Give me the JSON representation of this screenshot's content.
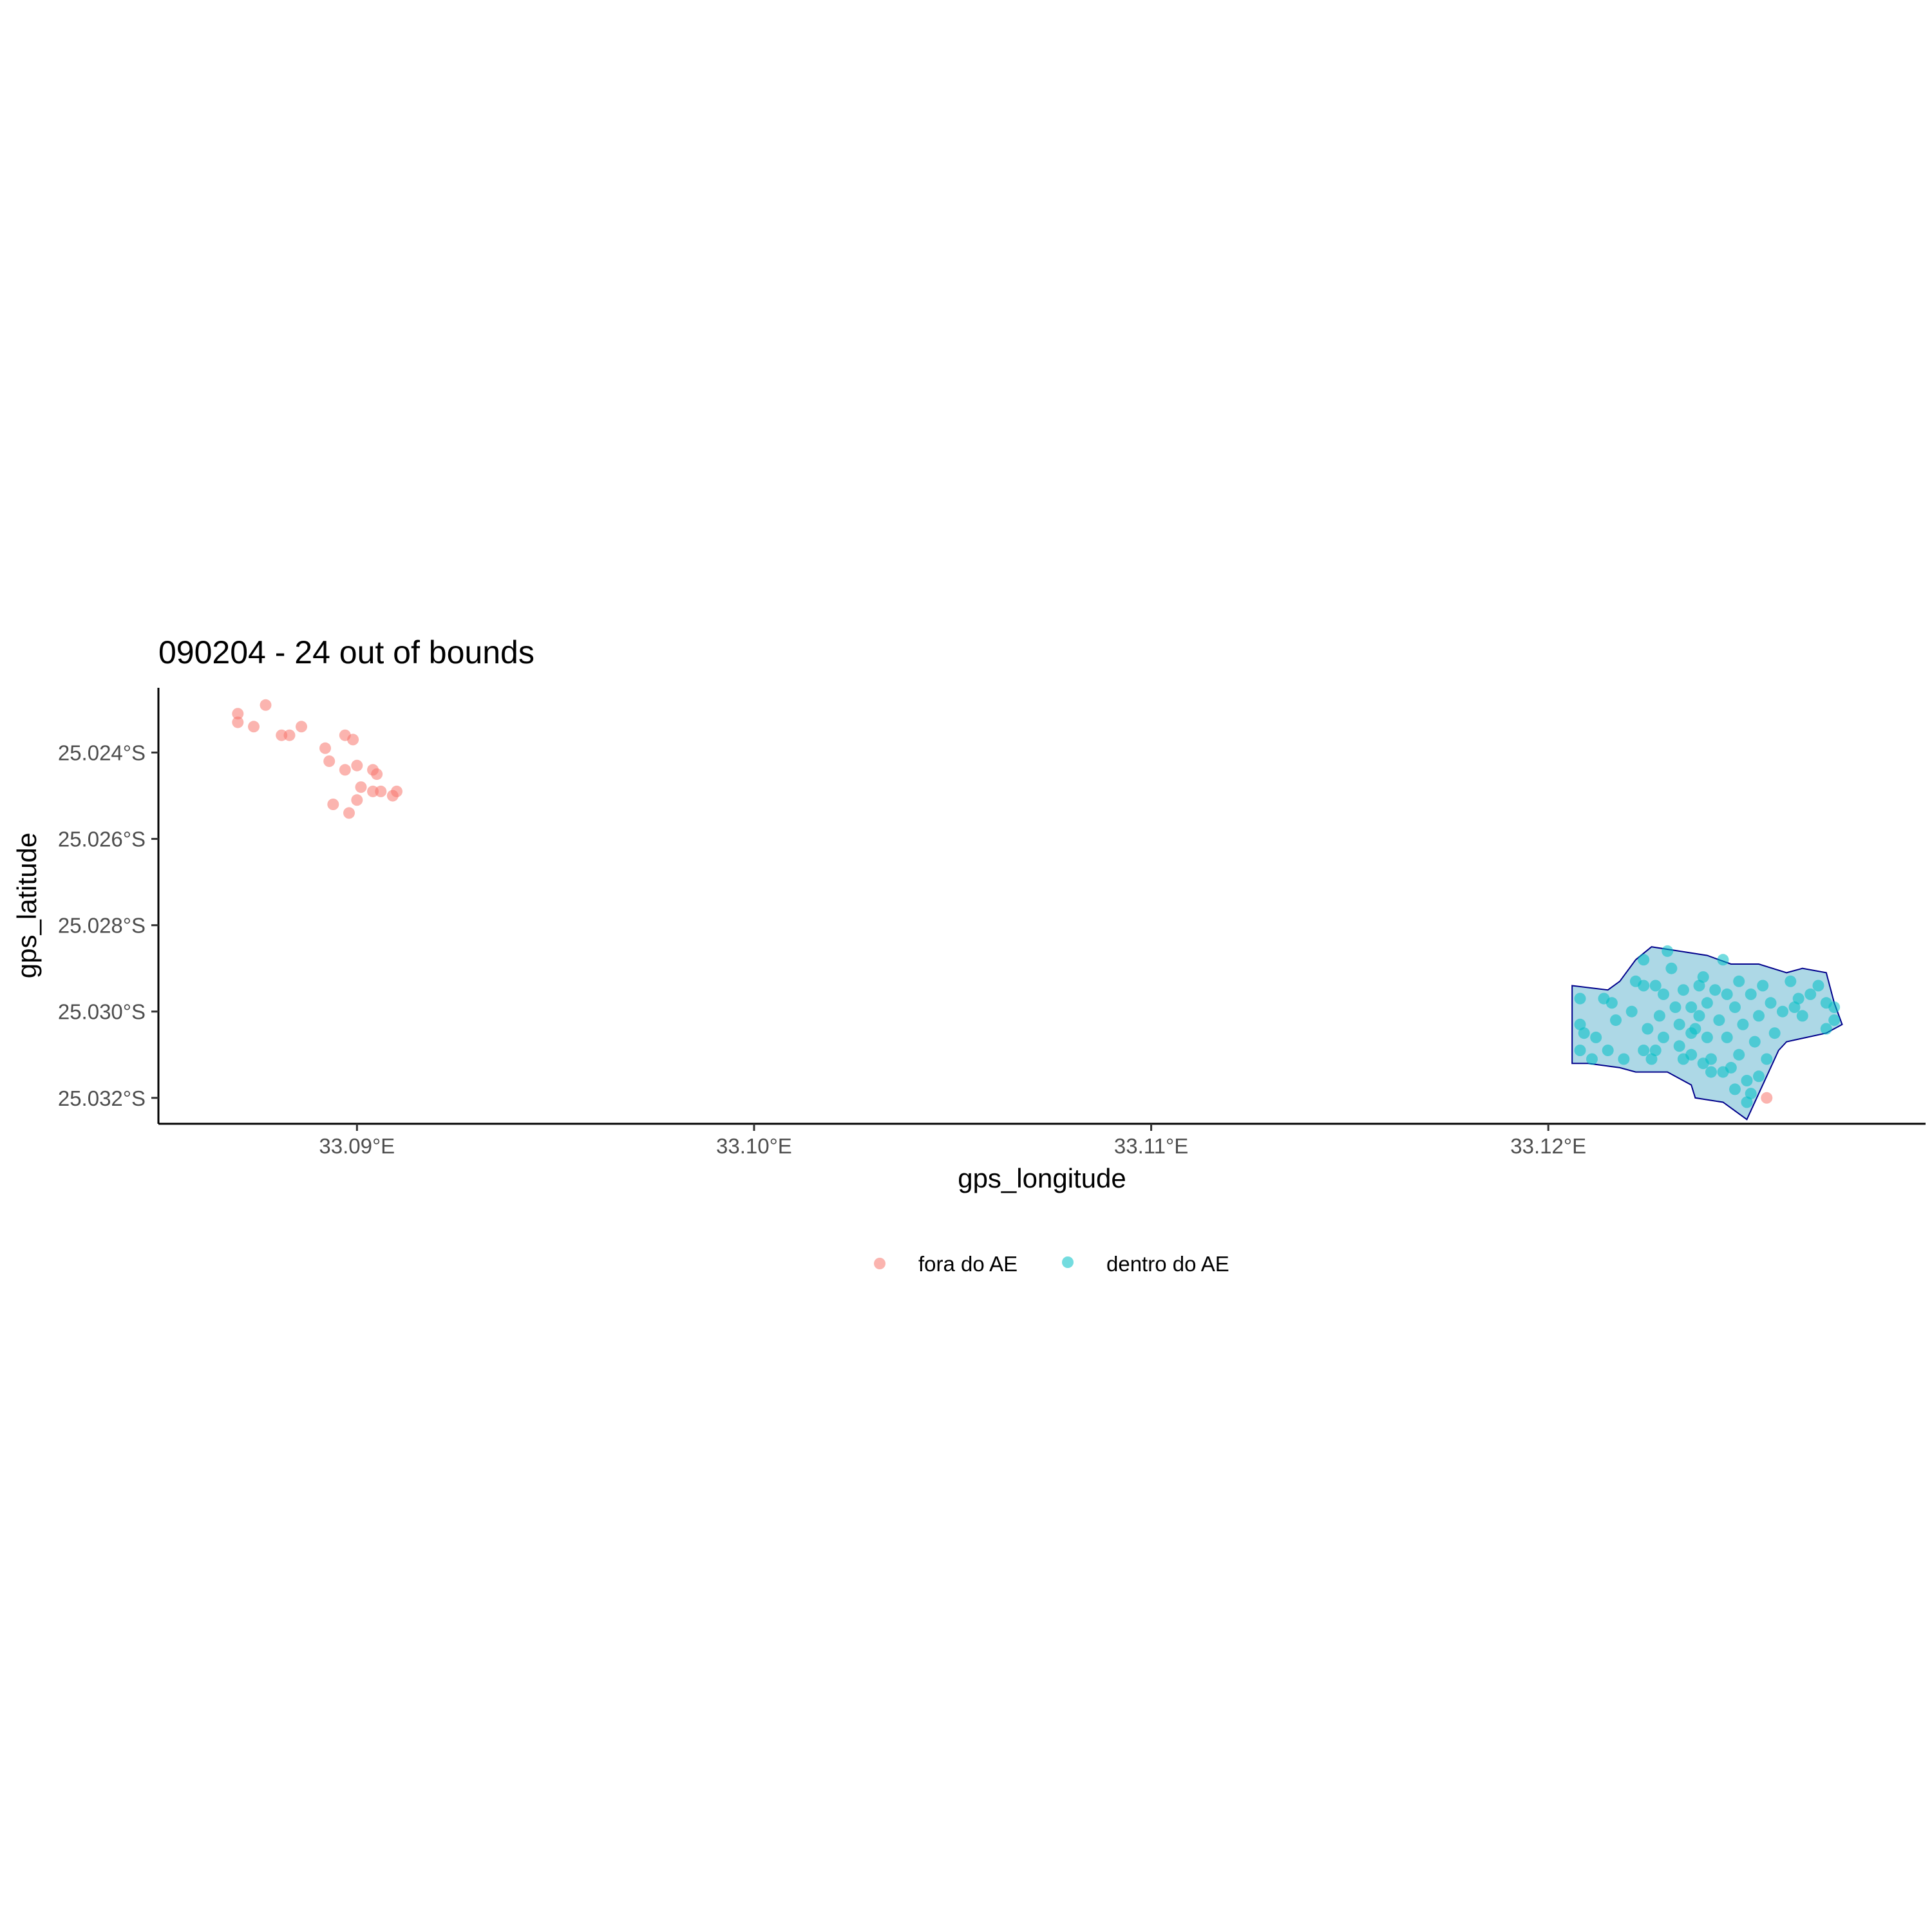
{
  "chart_data": {
    "type": "scatter",
    "title": "090204 - 24 out of bounds",
    "xlabel": "gps_longitude",
    "ylabel": "gps_latitude",
    "xlim": [
      33.085,
      33.1295
    ],
    "ylim": [
      -25.0326,
      -25.0225
    ],
    "x_ticks": [
      {
        "value": 33.09,
        "label": "33.09°E"
      },
      {
        "value": 33.1,
        "label": "33.10°E"
      },
      {
        "value": 33.11,
        "label": "33.11°E"
      },
      {
        "value": 33.12,
        "label": "33.12°E"
      }
    ],
    "y_ticks": [
      {
        "value": -25.024,
        "label": "25.024°S"
      },
      {
        "value": -25.026,
        "label": "25.026°S"
      },
      {
        "value": -25.028,
        "label": "25.028°S"
      },
      {
        "value": -25.03,
        "label": "25.030°S"
      },
      {
        "value": -25.032,
        "label": "25.032°S"
      }
    ],
    "grid": false,
    "legend_position": "bottom",
    "polygon": {
      "fill": "#add8e6",
      "stroke": "#00008b",
      "points": [
        [
          33.1206,
          -25.0294
        ],
        [
          33.1215,
          -25.0295
        ],
        [
          33.1218,
          -25.0293
        ],
        [
          33.1222,
          -25.0288
        ],
        [
          33.1226,
          -25.0285
        ],
        [
          33.1233,
          -25.0286
        ],
        [
          33.124,
          -25.0287
        ],
        [
          33.1246,
          -25.0289
        ],
        [
          33.1253,
          -25.0289
        ],
        [
          33.126,
          -25.0291
        ],
        [
          33.1264,
          -25.029
        ],
        [
          33.127,
          -25.0291
        ],
        [
          33.1272,
          -25.0298
        ],
        [
          33.1274,
          -25.0303
        ],
        [
          33.127,
          -25.0305
        ],
        [
          33.126,
          -25.0307
        ],
        [
          33.1258,
          -25.0309
        ],
        [
          33.125,
          -25.0325
        ],
        [
          33.1244,
          -25.0321
        ],
        [
          33.1237,
          -25.032
        ],
        [
          33.1236,
          -25.0317
        ],
        [
          33.123,
          -25.0314
        ],
        [
          33.1222,
          -25.0314
        ],
        [
          33.1218,
          -25.0313
        ],
        [
          33.121,
          -25.0312
        ],
        [
          33.1206,
          -25.0312
        ]
      ]
    },
    "series": [
      {
        "name": "fora do AE",
        "color": "#f8766d",
        "points": [
          [
            33.087,
            -25.0231
          ],
          [
            33.087,
            -25.0233
          ],
          [
            33.0874,
            -25.0234
          ],
          [
            33.0877,
            -25.0229
          ],
          [
            33.0881,
            -25.0236
          ],
          [
            33.0883,
            -25.0236
          ],
          [
            33.0886,
            -25.0234
          ],
          [
            33.0892,
            -25.0239
          ],
          [
            33.0893,
            -25.0242
          ],
          [
            33.0897,
            -25.0236
          ],
          [
            33.0899,
            -25.0237
          ],
          [
            33.0897,
            -25.0244
          ],
          [
            33.09,
            -25.0243
          ],
          [
            33.0904,
            -25.0244
          ],
          [
            33.0905,
            -25.0245
          ],
          [
            33.0901,
            -25.0248
          ],
          [
            33.0904,
            -25.0249
          ],
          [
            33.0906,
            -25.0249
          ],
          [
            33.0909,
            -25.025
          ],
          [
            33.091,
            -25.0249
          ],
          [
            33.0894,
            -25.0252
          ],
          [
            33.09,
            -25.0251
          ],
          [
            33.0898,
            -25.0254
          ],
          [
            33.1255,
            -25.032
          ]
        ]
      },
      {
        "name": "dentro do AE",
        "color": "#00bfc4",
        "points": [
          [
            33.1208,
            -25.0297
          ],
          [
            33.1208,
            -25.0303
          ],
          [
            33.1209,
            -25.0305
          ],
          [
            33.1208,
            -25.0309
          ],
          [
            33.1211,
            -25.0311
          ],
          [
            33.1212,
            -25.0306
          ],
          [
            33.1214,
            -25.0297
          ],
          [
            33.1216,
            -25.0298
          ],
          [
            33.1217,
            -25.0302
          ],
          [
            33.1215,
            -25.0309
          ],
          [
            33.1219,
            -25.0311
          ],
          [
            33.1221,
            -25.03
          ],
          [
            33.1222,
            -25.0293
          ],
          [
            33.1224,
            -25.0288
          ],
          [
            33.1224,
            -25.0294
          ],
          [
            33.1225,
            -25.0304
          ],
          [
            33.1224,
            -25.0309
          ],
          [
            33.1226,
            -25.0311
          ],
          [
            33.1227,
            -25.0294
          ],
          [
            33.1228,
            -25.0301
          ],
          [
            33.1229,
            -25.0296
          ],
          [
            33.1229,
            -25.0306
          ],
          [
            33.1227,
            -25.0309
          ],
          [
            33.123,
            -25.0286
          ],
          [
            33.1231,
            -25.029
          ],
          [
            33.1232,
            -25.0299
          ],
          [
            33.1233,
            -25.0303
          ],
          [
            33.1234,
            -25.0295
          ],
          [
            33.1233,
            -25.0308
          ],
          [
            33.1234,
            -25.0311
          ],
          [
            33.1236,
            -25.0299
          ],
          [
            33.1236,
            -25.0305
          ],
          [
            33.1236,
            -25.031
          ],
          [
            33.1238,
            -25.0294
          ],
          [
            33.1238,
            -25.0301
          ],
          [
            33.1239,
            -25.0292
          ],
          [
            33.124,
            -25.0298
          ],
          [
            33.124,
            -25.0306
          ],
          [
            33.1241,
            -25.0311
          ],
          [
            33.1242,
            -25.0295
          ],
          [
            33.1243,
            -25.0302
          ],
          [
            33.1244,
            -25.0288
          ],
          [
            33.1245,
            -25.0296
          ],
          [
            33.1245,
            -25.0306
          ],
          [
            33.1246,
            -25.0313
          ],
          [
            33.1247,
            -25.0299
          ],
          [
            33.1248,
            -25.0293
          ],
          [
            33.1248,
            -25.031
          ],
          [
            33.1249,
            -25.0303
          ],
          [
            33.125,
            -25.0316
          ],
          [
            33.1251,
            -25.0296
          ],
          [
            33.1252,
            -25.0307
          ],
          [
            33.1253,
            -25.0301
          ],
          [
            33.1254,
            -25.0294
          ],
          [
            33.1255,
            -25.0311
          ],
          [
            33.1256,
            -25.0298
          ],
          [
            33.1257,
            -25.0305
          ],
          [
            33.1259,
            -25.03
          ],
          [
            33.1261,
            -25.0293
          ],
          [
            33.1262,
            -25.0299
          ],
          [
            33.1263,
            -25.0297
          ],
          [
            33.1264,
            -25.0301
          ],
          [
            33.1266,
            -25.0296
          ],
          [
            33.1268,
            -25.0294
          ],
          [
            33.127,
            -25.0298
          ],
          [
            33.127,
            -25.0304
          ],
          [
            33.1272,
            -25.0302
          ],
          [
            33.1272,
            -25.0299
          ],
          [
            33.125,
            -25.0321
          ],
          [
            33.1251,
            -25.0319
          ],
          [
            33.1253,
            -25.0315
          ],
          [
            33.1247,
            -25.0318
          ],
          [
            33.1244,
            -25.0314
          ],
          [
            33.1241,
            -25.0314
          ],
          [
            33.1239,
            -25.0312
          ],
          [
            33.1237,
            -25.0304
          ]
        ]
      }
    ]
  }
}
